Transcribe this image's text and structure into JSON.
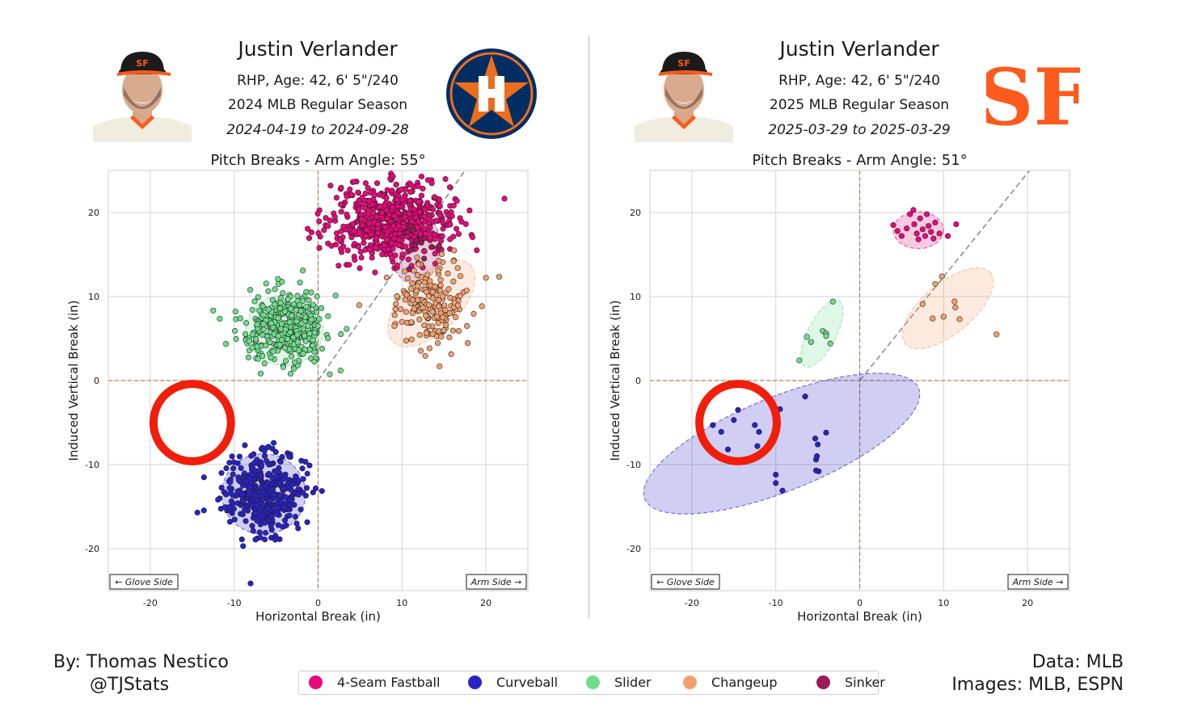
{
  "panels": [
    {
      "player_name": "Justin Verlander",
      "bio": "RHP, Age: 42, 6' 5\"/240",
      "season": "2024 MLB Regular Season",
      "dates": "2024-04-19 to 2024-09-28",
      "team_logo": "houston-astros-logo"
    },
    {
      "player_name": "Justin Verlander",
      "bio": "RHP, Age: 42, 6' 5\"/240",
      "season": "2025 MLB Regular Season",
      "dates": "2025-03-29 to 2025-03-29",
      "team_logo": "san-francisco-giants-logo"
    }
  ],
  "credits": {
    "author": "By: Thomas Nestico",
    "handle": "@TJStats",
    "data_source": "Data: MLB",
    "images_source": "Images: MLB, ESPN"
  },
  "colors": {
    "fastball": "#e8097a",
    "curveball": "#2a22c4",
    "slider": "#6fdc8c",
    "changeup": "#f2a06e",
    "sinker": "#9b1a5a",
    "highlight_circle": "#f01e0a",
    "astros_navy": "#002d62",
    "astros_orange": "#eb6e1f",
    "giants_orange": "#fd5a1e"
  },
  "legend": [
    {
      "label": "4-Seam Fastball",
      "color": "#e8097a"
    },
    {
      "label": "Curveball",
      "color": "#2a22c4"
    },
    {
      "label": "Slider",
      "color": "#6fdc8c"
    },
    {
      "label": "Changeup",
      "color": "#f2a06e"
    },
    {
      "label": "Sinker",
      "color": "#9b1a5a"
    }
  ],
  "chart_data": [
    {
      "type": "scatter",
      "title": "Pitch Breaks - Arm Angle: 55°",
      "xlabel": "Horizontal Break (in)",
      "ylabel": "Induced Vertical Break (in)",
      "xlim": [
        -25,
        25
      ],
      "ylim": [
        -25,
        25
      ],
      "xticks": [
        -20,
        -10,
        0,
        10,
        20
      ],
      "yticks": [
        -20,
        -10,
        0,
        10,
        20
      ],
      "grid": true,
      "arm_angle_deg": 55,
      "annotations": {
        "glove_side": "← Glove Side",
        "arm_side": "Arm Side →"
      },
      "highlight_circle": {
        "x": -15,
        "y": -5,
        "radius_in": 5
      },
      "series": [
        {
          "name": "4-Seam Fastball",
          "key": "fastball",
          "center": [
            9,
            19
          ],
          "spread": [
            3.8,
            2.3
          ],
          "n": 650,
          "ellipse": null
        },
        {
          "name": "Sinker",
          "key": "sinker",
          "center": [
            11.5,
            16
          ],
          "spread": [
            1.5,
            1.5
          ],
          "n": 12,
          "ellipse": {
            "rx": 3,
            "ry": 4.5,
            "angle": 0
          }
        },
        {
          "name": "Changeup",
          "key": "changeup",
          "center": [
            13.5,
            9.2
          ],
          "spread": [
            2.3,
            2.4
          ],
          "n": 190,
          "ellipse": {
            "rx": 6.5,
            "ry": 3.4,
            "angle": -45
          }
        },
        {
          "name": "Slider",
          "key": "slider",
          "center": [
            -4,
            6
          ],
          "spread": [
            2.5,
            2.3
          ],
          "n": 380,
          "ellipse": {
            "rx": 4.6,
            "ry": 4.2,
            "angle": 0
          }
        },
        {
          "name": "Curveball",
          "key": "curveball",
          "center": [
            -6.5,
            -13.5
          ],
          "spread": [
            2.4,
            2.4
          ],
          "n": 420,
          "ellipse": {
            "rx": 5,
            "ry": 4.8,
            "angle": 0
          }
        }
      ]
    },
    {
      "type": "scatter",
      "title": "Pitch Breaks - Arm Angle: 51°",
      "xlabel": "Horizontal Break (in)",
      "ylabel": "Induced Vertical Break (in)",
      "xlim": [
        -25,
        25
      ],
      "ylim": [
        -25,
        25
      ],
      "xticks": [
        -20,
        -10,
        0,
        10,
        20
      ],
      "yticks": [
        -20,
        -10,
        0,
        10,
        20
      ],
      "grid": true,
      "arm_angle_deg": 51,
      "annotations": {
        "glove_side": "← Glove Side",
        "arm_side": "Arm Side →"
      },
      "highlight_circle": {
        "x": -14.5,
        "y": -5,
        "radius_in": 5
      },
      "series": [
        {
          "name": "4-Seam Fastball",
          "key": "fastball",
          "points": [
            [
              4,
              18.5
            ],
            [
              4.5,
              17.8
            ],
            [
              5,
              17.2
            ],
            [
              5.6,
              18.1
            ],
            [
              6,
              19.8
            ],
            [
              6.4,
              20.3
            ],
            [
              6.5,
              18.6
            ],
            [
              6.8,
              17.5
            ],
            [
              7,
              16.8
            ],
            [
              7.2,
              19.3
            ],
            [
              7.5,
              18
            ],
            [
              7.8,
              17.2
            ],
            [
              8,
              19.8
            ],
            [
              8.2,
              18.4
            ],
            [
              8.5,
              17.7
            ],
            [
              8.8,
              16.9
            ],
            [
              9,
              18.8
            ],
            [
              9.5,
              17.5
            ],
            [
              10.5,
              17.2
            ],
            [
              11.5,
              18.6
            ]
          ],
          "ellipse": {
            "cx": 7,
            "cy": 17.9,
            "rx": 3,
            "ry": 2.2,
            "angle": 0
          }
        },
        {
          "name": "Changeup",
          "key": "changeup",
          "points": [
            [
              9,
              11.5
            ],
            [
              9.8,
              12.4
            ],
            [
              7.5,
              9.1
            ],
            [
              8.7,
              7.4
            ],
            [
              10,
              7.6
            ],
            [
              11.3,
              9.4
            ],
            [
              11.4,
              8.7
            ],
            [
              11.9,
              7.3
            ],
            [
              16.3,
              5.5
            ]
          ],
          "ellipse": {
            "cx": 10.5,
            "cy": 8.6,
            "rx": 6.6,
            "ry": 3,
            "angle": -40
          }
        },
        {
          "name": "Slider",
          "key": "slider",
          "points": [
            [
              -7.2,
              2.4
            ],
            [
              -6.3,
              5.2
            ],
            [
              -5.8,
              4.6
            ],
            [
              -4.4,
              5.9
            ],
            [
              -4,
              5.6
            ],
            [
              -4,
              5.3
            ],
            [
              -3.5,
              4.4
            ],
            [
              -3.2,
              9.4
            ]
          ],
          "ellipse": {
            "cx": -4.5,
            "cy": 5.6,
            "rx": 4.4,
            "ry": 1.7,
            "angle": -63
          }
        },
        {
          "name": "Curveball",
          "key": "curveball",
          "points": [
            [
              -17.5,
              -5.3
            ],
            [
              -16.5,
              -6.1
            ],
            [
              -15.7,
              -8.2
            ],
            [
              -15,
              -4.7
            ],
            [
              -14.5,
              -3.5
            ],
            [
              -12.5,
              -5.3
            ],
            [
              -12.2,
              -7.8
            ],
            [
              -12,
              -6.1
            ],
            [
              -10.4,
              -6.8
            ],
            [
              -10,
              -5.8
            ],
            [
              -9.5,
              -3.4
            ],
            [
              -10,
              -11.2
            ],
            [
              -10,
              -12.2
            ],
            [
              -9.2,
              -13.1
            ],
            [
              -6.5,
              -1.9
            ],
            [
              -5.3,
              -6.9
            ],
            [
              -5.2,
              -9.4
            ],
            [
              -5.1,
              -9
            ],
            [
              -5.2,
              -10.7
            ],
            [
              -4.9,
              -10.8
            ],
            [
              -5,
              -7.6
            ],
            [
              -4,
              -6.2
            ]
          ],
          "ellipse": {
            "cx": -9.3,
            "cy": -7.5,
            "rx": 17.6,
            "ry": 5.6,
            "angle": -22
          }
        }
      ]
    }
  ]
}
